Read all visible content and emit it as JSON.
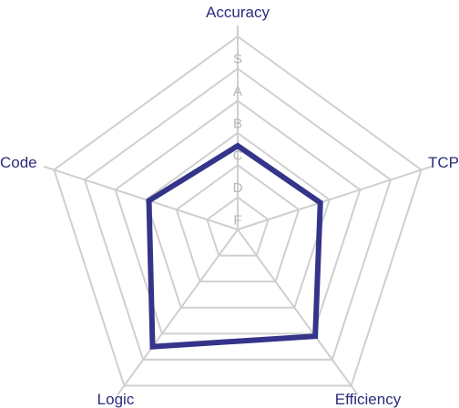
{
  "chart_data": {
    "type": "radar",
    "axes": [
      "Accuracy",
      "TCP",
      "Efficiency",
      "Logic",
      "Code"
    ],
    "grade_scale": [
      "F",
      "D",
      "C",
      "B",
      "A",
      "S"
    ],
    "series": [
      {
        "values": [
          2.6,
          2.7,
          4.1,
          4.5,
          2.9
        ]
      }
    ],
    "range": [
      0,
      6
    ],
    "grid": "pentagonal",
    "colors": {
      "series": "#34348a",
      "grid": "#cfcfcf",
      "labels": "#2c2c7e",
      "ticks": "#b7b7b7"
    }
  }
}
